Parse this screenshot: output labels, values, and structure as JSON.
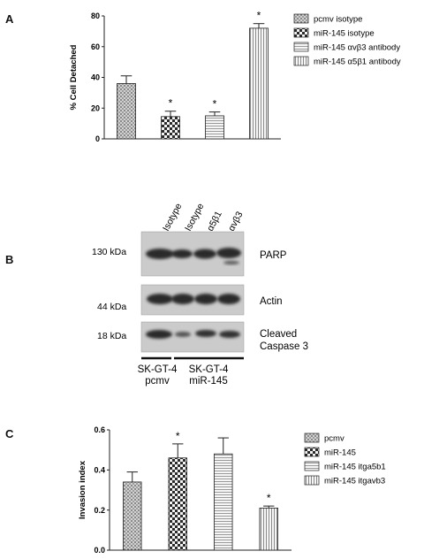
{
  "panels": {
    "a": {
      "letter": "A"
    },
    "b": {
      "letter": "B"
    },
    "c": {
      "letter": "C"
    }
  },
  "colors": {
    "bar_fill": "#bdbdbd",
    "blot_band": "#2b2b2b",
    "blot_bg": "#cfcfcf"
  },
  "chart_data": [
    {
      "type": "bar",
      "panel": "A",
      "categories": [
        "pcmv isotype",
        "miR-145 isotype",
        "miR-145 αvβ3 antibody",
        "miR-145 α5β1 antibody"
      ],
      "series": [
        {
          "name": "% Cell Detached",
          "values": [
            36,
            14.5,
            15,
            72
          ],
          "errors": [
            5,
            3.5,
            2.5,
            3
          ]
        }
      ],
      "patterns": [
        "dots",
        "checker",
        "hlines",
        "vlines"
      ],
      "significance": [
        "",
        "*",
        "*",
        "*"
      ],
      "ylabel": "% Cell Detached",
      "yticks": [
        "0",
        "20",
        "40",
        "60",
        "80"
      ],
      "ylim": [
        0,
        80
      ],
      "legend": [
        "pcmv isotype",
        "miR-145 isotype",
        "miR-145 αvβ3 antibody",
        "miR-145 α5β1 antibody"
      ],
      "legend_position": "right"
    },
    {
      "type": "bar",
      "panel": "C",
      "categories": [
        "pcmv",
        "miR-145",
        "miR-145 itga5b1",
        "miR-145 itgavb3"
      ],
      "series": [
        {
          "name": "Invasion index",
          "values": [
            0.34,
            0.46,
            0.48,
            0.21
          ],
          "errors": [
            0.05,
            0.07,
            0.08,
            0.01
          ]
        }
      ],
      "patterns": [
        "dots",
        "checker",
        "hlines",
        "vlines"
      ],
      "significance": [
        "",
        "*",
        "",
        "*"
      ],
      "ylabel": "Invasion index",
      "yticks": [
        "0.0",
        "0.2",
        "0.4",
        "0.6"
      ],
      "ylim": [
        0,
        0.6
      ],
      "legend": [
        "pcmv",
        "miR-145",
        "miR-145 itga5b1",
        "miR-145 itgavb3"
      ],
      "legend_position": "right"
    }
  ],
  "blot": {
    "lane_labels": [
      "Isotype",
      "Isotype",
      "α5β1",
      "αvβ3"
    ],
    "rows": [
      {
        "kda": "130 kDa",
        "protein": [
          "PARP"
        ]
      },
      {
        "kda": "44 kDa",
        "protein": [
          "Actin"
        ]
      },
      {
        "kda": "18 kDa",
        "protein": [
          "Cleaved",
          "Caspase 3"
        ]
      }
    ],
    "groups": [
      {
        "lines": [
          "SK-GT-4",
          "pcmv"
        ]
      },
      {
        "lines": [
          "SK-GT-4",
          "miR-145"
        ]
      }
    ]
  }
}
